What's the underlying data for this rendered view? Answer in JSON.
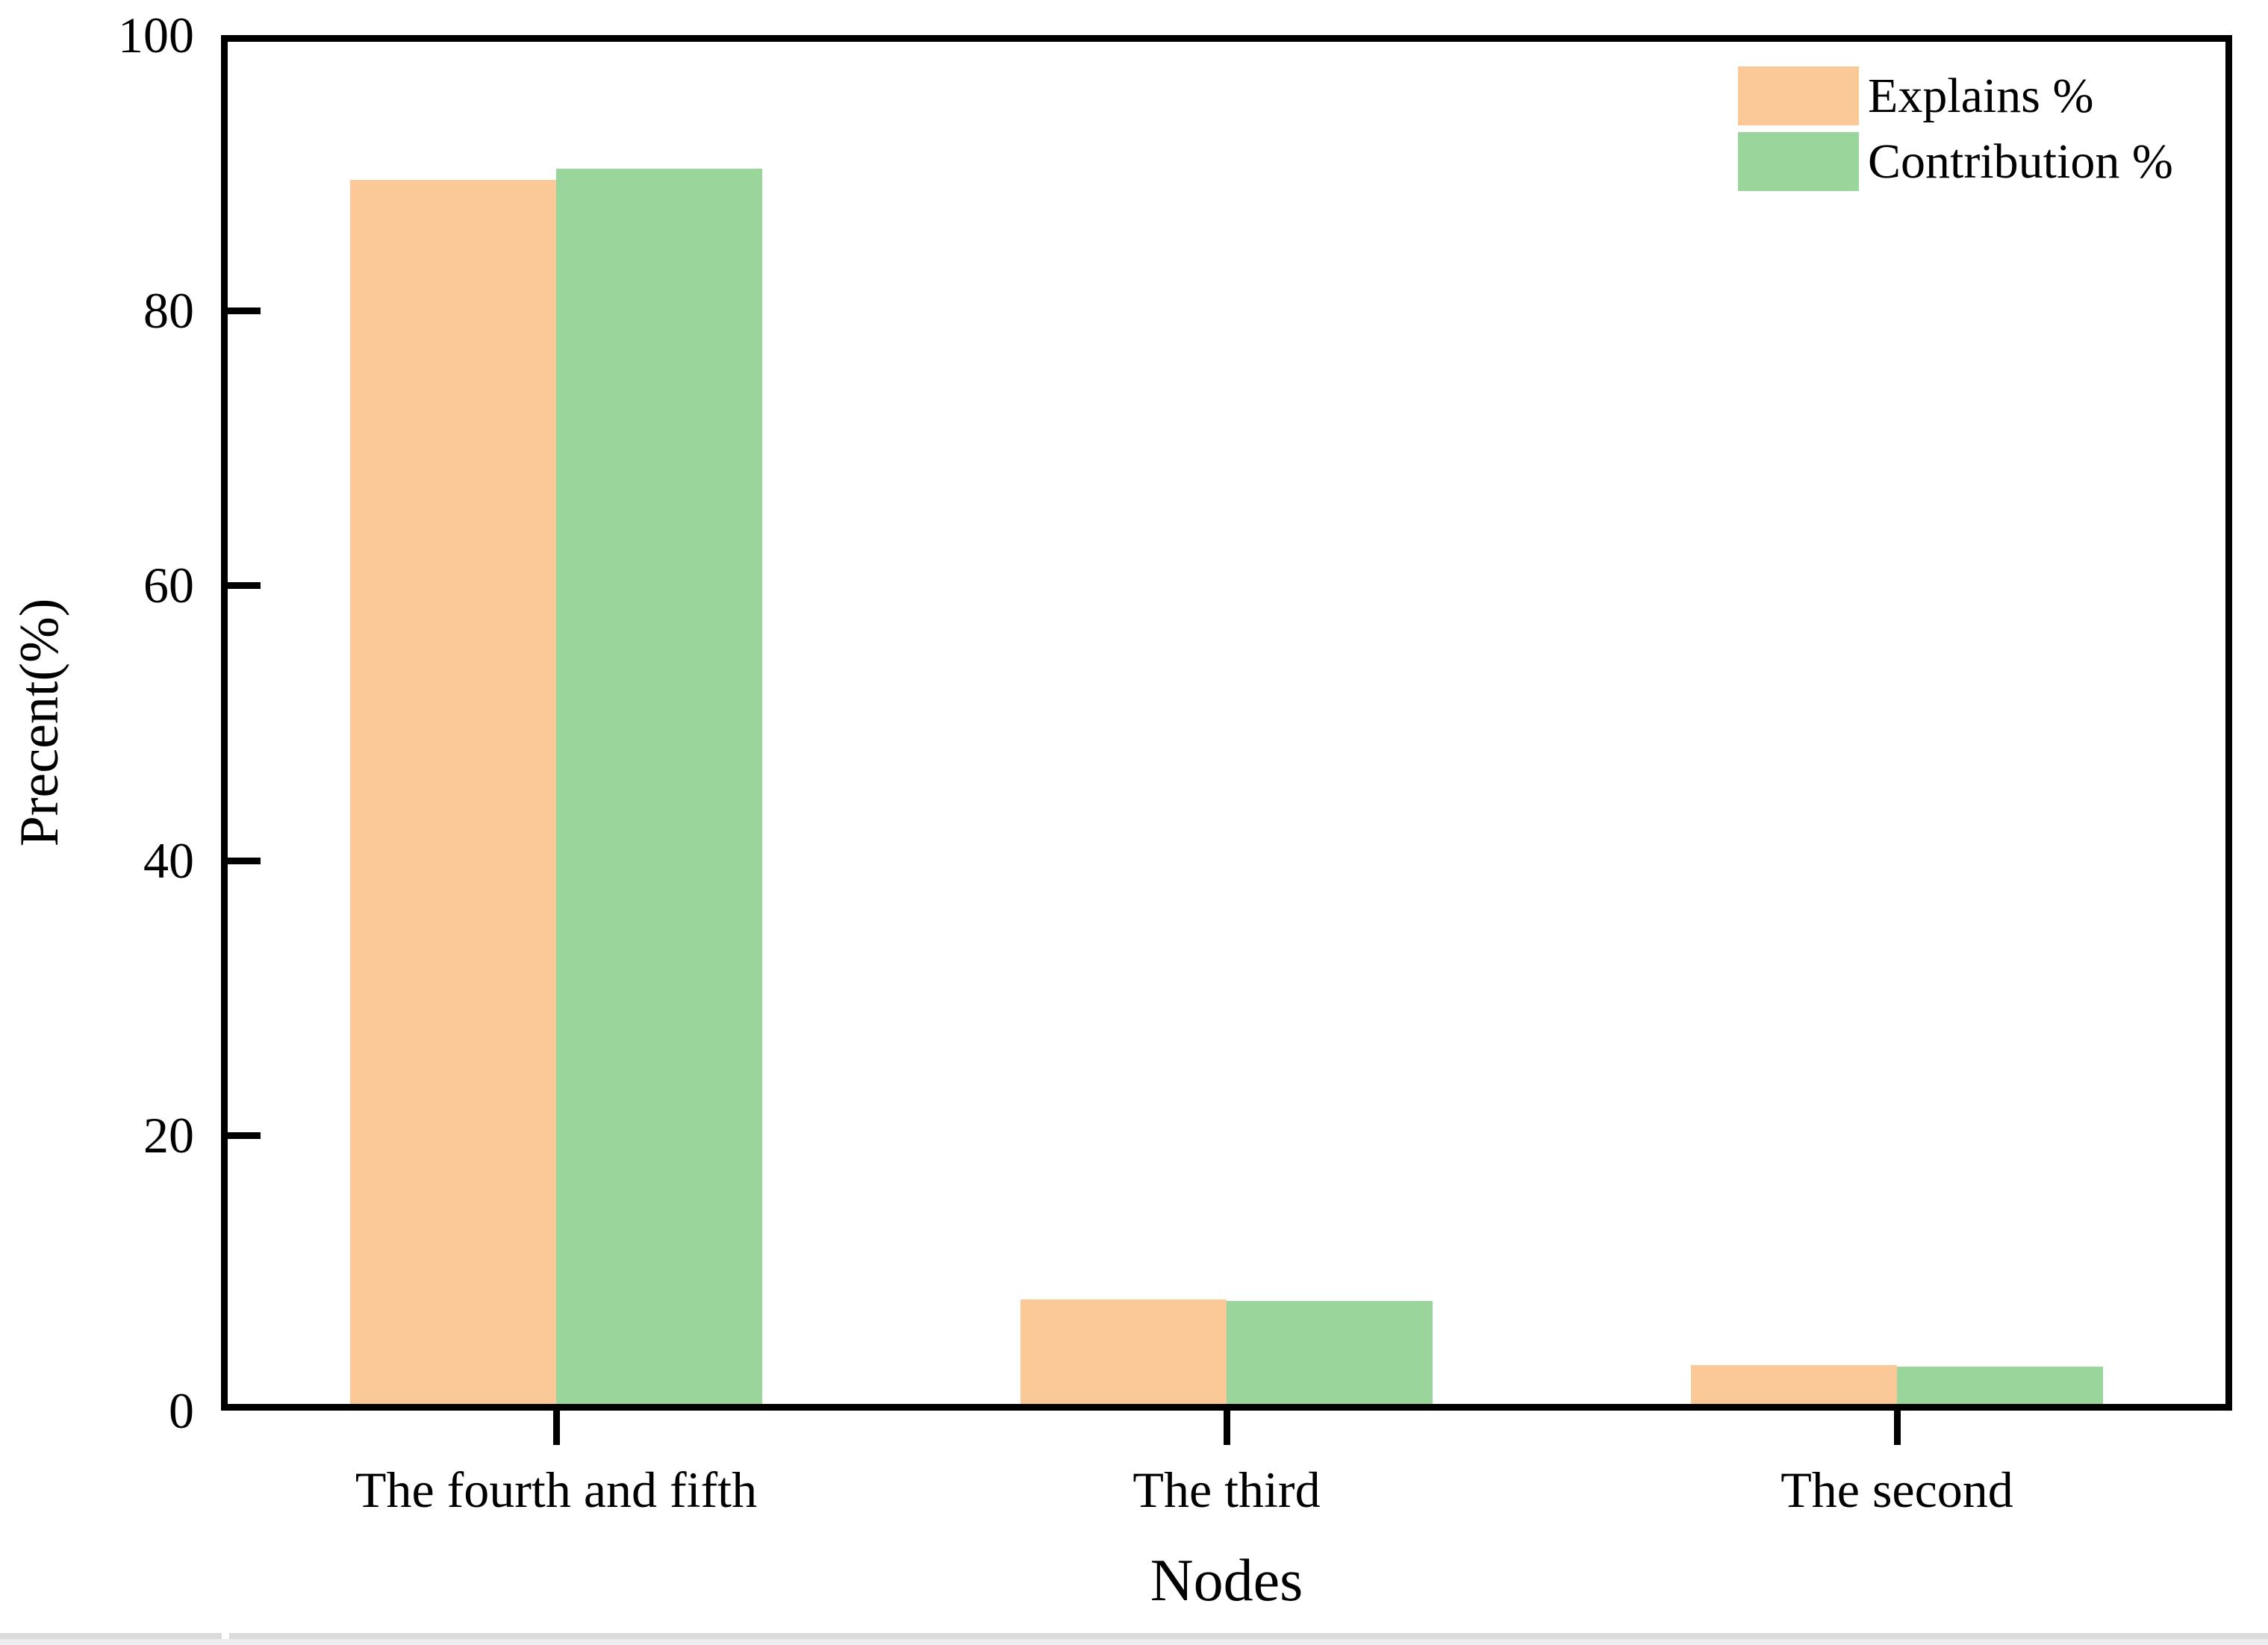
{
  "chart_data": {
    "type": "bar",
    "title": "",
    "categories": [
      "The fourth and fifth",
      "The third",
      "The second"
    ],
    "series": [
      {
        "name": "Explains %",
        "color": "#FBC897",
        "values": [
          89.5,
          8.1,
          3.3
        ]
      },
      {
        "name": "Contribution %",
        "color": "#9AD59C",
        "values": [
          90.3,
          8.0,
          3.2
        ]
      }
    ],
    "xlabel": "Nodes",
    "ylabel": "Precent(%)",
    "ylim": [
      0,
      100
    ],
    "yticks": [
      0,
      20,
      40,
      60,
      80,
      100
    ],
    "legend_position": "top-right",
    "grid": false,
    "axis_color": "#000000",
    "background_color": "#ffffff"
  },
  "bottom_strip": {
    "description": "top edge of an element partially visible below the chart",
    "line_color": "#dbdbdd",
    "lower_color": "#ededef",
    "gap_color": "#ffffff"
  }
}
